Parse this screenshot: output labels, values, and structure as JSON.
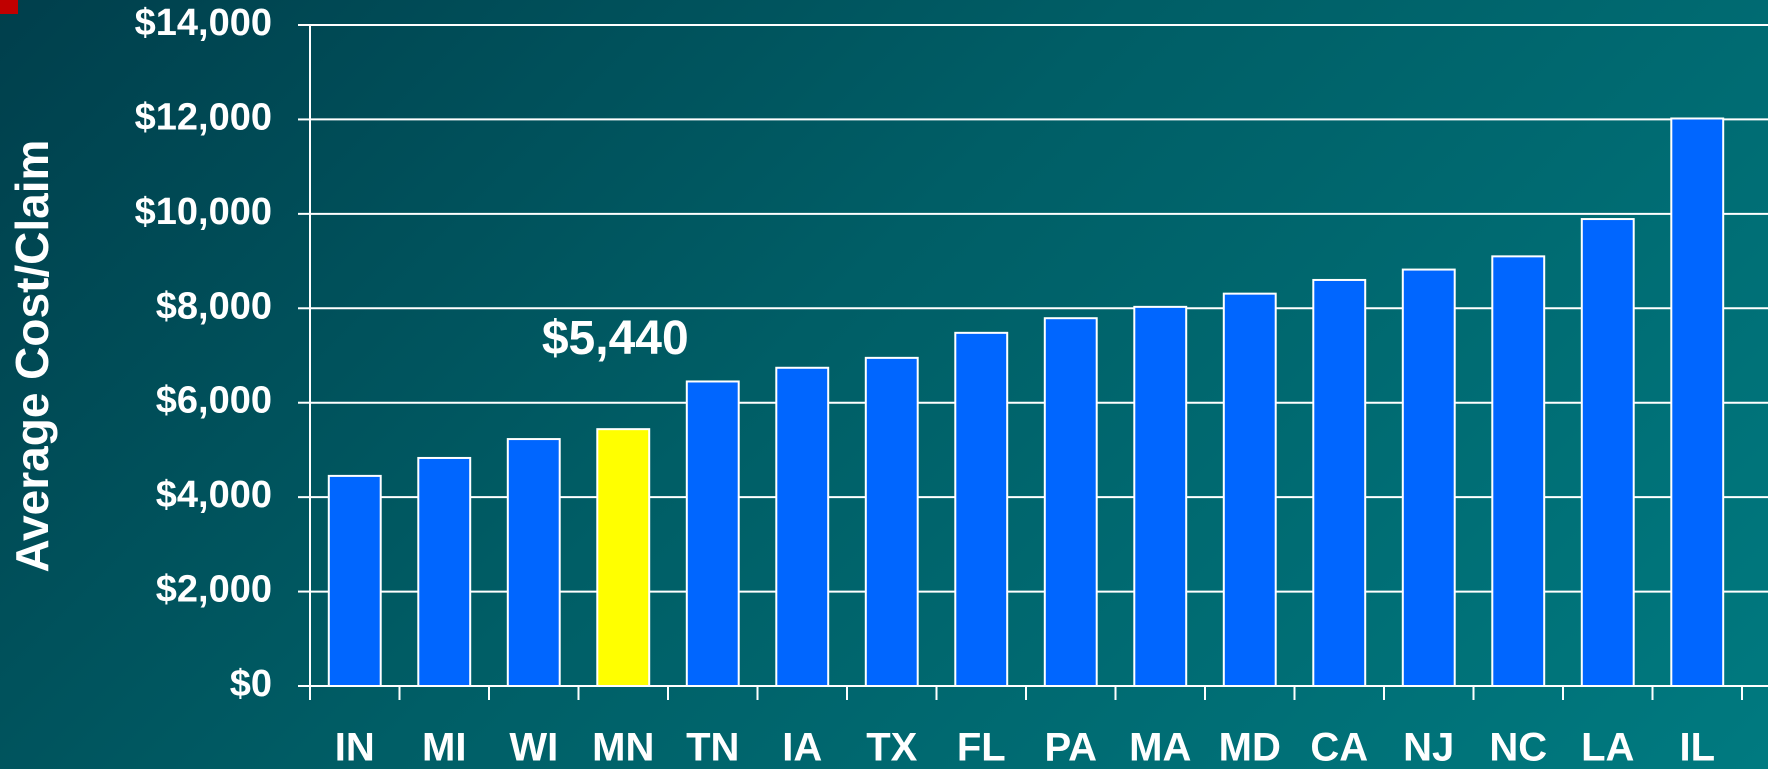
{
  "chart_data": {
    "type": "bar",
    "y_axis_label": "Average Cost/Claim",
    "categories": [
      "IN",
      "MI",
      "WI",
      "MN",
      "TN",
      "IA",
      "TX",
      "FL",
      "PA",
      "MA",
      "MD",
      "CA",
      "NJ",
      "NC",
      "LA",
      "IL"
    ],
    "values": [
      4450,
      4830,
      5230,
      5440,
      6450,
      6740,
      6950,
      7480,
      7790,
      8030,
      8310,
      8600,
      8820,
      9100,
      9890,
      12020
    ],
    "value_labels": [
      null,
      null,
      null,
      "$5,440",
      null,
      null,
      null,
      null,
      null,
      null,
      null,
      null,
      null,
      null,
      null,
      null
    ],
    "colors": [
      "#0066ff",
      "#0066ff",
      "#0066ff",
      "#ffff00",
      "#0066ff",
      "#0066ff",
      "#0066ff",
      "#0066ff",
      "#0066ff",
      "#0066ff",
      "#0066ff",
      "#0066ff",
      "#0066ff",
      "#0066ff",
      "#0066ff",
      "#0066ff"
    ],
    "ylim": [
      0,
      14000
    ],
    "yticks": [
      {
        "value": 0,
        "label": "$0"
      },
      {
        "value": 2000,
        "label": "$2,000"
      },
      {
        "value": 4000,
        "label": "$4,000"
      },
      {
        "value": 6000,
        "label": "$6,000"
      },
      {
        "value": 8000,
        "label": "$8,000"
      },
      {
        "value": 10000,
        "label": "$10,000"
      },
      {
        "value": 12000,
        "label": "$12,000"
      },
      {
        "value": 14000,
        "label": "$14,000"
      }
    ],
    "grid": true
  }
}
